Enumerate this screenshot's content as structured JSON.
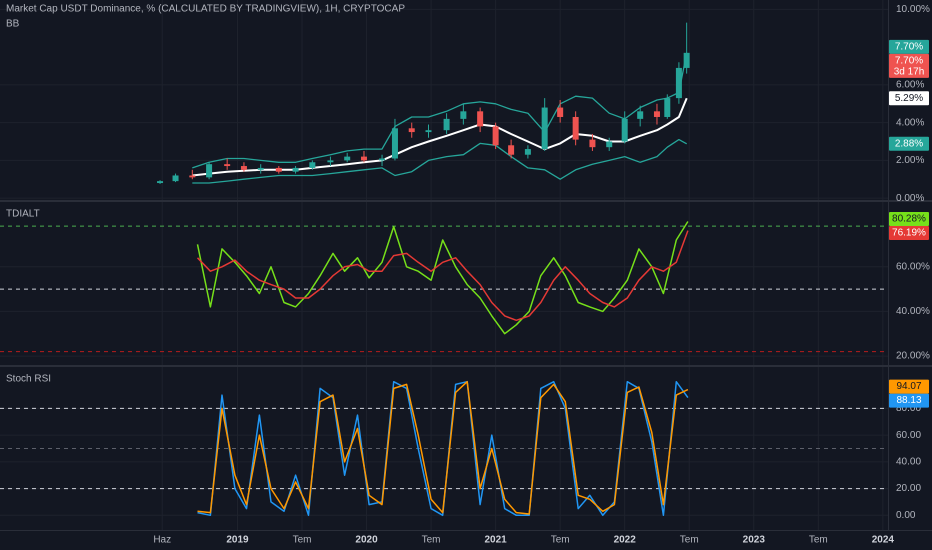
{
  "chart_data": [
    {
      "type": "candlestick",
      "title": "Market Cap USDT Dominance, % (CALCULATED BY TRADINGVIEW), 1H, CRYPTOCAP",
      "indicator": "BB",
      "x": [
        2018.4,
        2018.52,
        2018.65,
        2018.78,
        2018.92,
        2019.05,
        2019.18,
        2019.32,
        2019.45,
        2019.58,
        2019.72,
        2019.85,
        2019.98,
        2020.12,
        2020.22,
        2020.35,
        2020.48,
        2020.62,
        2020.75,
        2020.88,
        2021.0,
        2021.12,
        2021.25,
        2021.38,
        2021.5,
        2021.62,
        2021.75,
        2021.88,
        2022.0,
        2022.12,
        2022.25,
        2022.33,
        2022.42,
        2022.48
      ],
      "open": [
        0.8,
        0.9,
        1.2,
        1.1,
        1.8,
        1.7,
        1.5,
        1.6,
        1.4,
        1.6,
        1.9,
        2.0,
        2.2,
        2.0,
        2.1,
        3.7,
        3.5,
        3.6,
        4.2,
        4.6,
        3.8,
        2.8,
        2.3,
        2.6,
        4.8,
        4.3,
        3.1,
        2.7,
        3.0,
        4.2,
        4.6,
        4.3,
        5.3,
        6.9
      ],
      "high": [
        0.95,
        1.3,
        1.5,
        1.9,
        2.1,
        1.9,
        1.8,
        1.7,
        1.7,
        2.0,
        2.2,
        2.4,
        2.5,
        2.3,
        4.2,
        4.0,
        3.9,
        4.5,
        5.0,
        4.8,
        4.0,
        3.1,
        2.8,
        5.3,
        5.2,
        4.6,
        3.4,
        3.2,
        4.6,
        4.9,
        5.0,
        5.5,
        7.2,
        9.3
      ],
      "low": [
        0.75,
        0.85,
        1.0,
        1.0,
        1.5,
        1.4,
        1.3,
        1.3,
        1.3,
        1.5,
        1.7,
        1.9,
        1.9,
        1.7,
        2.0,
        3.2,
        3.2,
        3.4,
        3.9,
        3.5,
        2.6,
        2.1,
        2.1,
        2.5,
        4.0,
        2.8,
        2.5,
        2.5,
        2.9,
        3.8,
        3.9,
        4.2,
        5.0,
        6.6
      ],
      "close": [
        0.9,
        1.2,
        1.1,
        1.8,
        1.7,
        1.5,
        1.6,
        1.4,
        1.6,
        1.9,
        2.0,
        2.2,
        2.0,
        2.1,
        3.7,
        3.5,
        3.6,
        4.2,
        4.6,
        3.8,
        2.8,
        2.3,
        2.6,
        4.8,
        4.3,
        3.1,
        2.7,
        3.0,
        4.2,
        4.6,
        4.3,
        5.3,
        6.9,
        7.7
      ],
      "up_color": "#26a69a",
      "down_color": "#ef5350",
      "close_label": "7.70%",
      "countdown": "3d 17h",
      "overlays": [
        {
          "color": "#26a69a",
          "values": [
            null,
            null,
            1.6,
            1.9,
            2.1,
            2.1,
            2.0,
            1.9,
            1.9,
            2.1,
            2.3,
            2.5,
            2.6,
            2.6,
            3.8,
            4.3,
            4.3,
            4.6,
            5.0,
            5.1,
            5.0,
            4.7,
            4.5,
            3.5,
            5.0,
            5.4,
            5.3,
            4.5,
            4.2,
            4.8,
            5.2,
            5.3,
            5.6,
            7.7
          ],
          "last_label": "7.70%"
        },
        {
          "color": "#ffffff",
          "values": [
            null,
            null,
            1.2,
            1.3,
            1.4,
            1.45,
            1.5,
            1.5,
            1.5,
            1.6,
            1.7,
            1.8,
            1.9,
            2.0,
            2.3,
            2.7,
            3.0,
            3.3,
            3.6,
            3.9,
            3.8,
            3.4,
            3.0,
            2.6,
            2.9,
            3.4,
            3.3,
            3.0,
            3.0,
            3.3,
            3.6,
            3.9,
            4.3,
            5.29
          ],
          "last_label": "5.29%"
        },
        {
          "color": "#26a69a",
          "values": [
            null,
            null,
            0.8,
            0.8,
            0.9,
            1.0,
            1.1,
            1.2,
            1.2,
            1.2,
            1.3,
            1.4,
            1.5,
            1.6,
            1.2,
            1.4,
            2.0,
            2.2,
            2.3,
            2.9,
            2.8,
            2.2,
            1.6,
            1.5,
            1.0,
            1.5,
            1.8,
            2.0,
            2.2,
            1.9,
            2.2,
            2.7,
            3.1,
            2.88
          ],
          "last_label": "2.88%"
        }
      ],
      "xlim": [
        2017.16,
        2024.04
      ],
      "ylim": [
        -0.1,
        10.5
      ],
      "yticks": [
        {
          "value": 0,
          "label": "0.00%"
        },
        {
          "value": 2,
          "label": "2.00%"
        },
        {
          "value": 4,
          "label": "4.00%"
        },
        {
          "value": 6,
          "label": "6.00%"
        },
        {
          "value": 10,
          "label": "10.00%"
        }
      ]
    },
    {
      "type": "line",
      "title": "TDIALT",
      "x": [
        2018.69,
        2018.79,
        2018.88,
        2018.98,
        2019.07,
        2019.17,
        2019.26,
        2019.36,
        2019.45,
        2019.55,
        2019.64,
        2019.74,
        2019.83,
        2019.93,
        2020.02,
        2020.12,
        2020.21,
        2020.31,
        2020.4,
        2020.5,
        2020.59,
        2020.69,
        2020.78,
        2020.88,
        2020.97,
        2021.07,
        2021.16,
        2021.26,
        2021.35,
        2021.45,
        2021.54,
        2021.64,
        2021.73,
        2021.83,
        2021.92,
        2022.02,
        2022.11,
        2022.21,
        2022.3,
        2022.4,
        2022.49
      ],
      "series": [
        {
          "color": "#76e01a",
          "values": [
            70,
            42,
            68,
            62,
            56,
            48,
            60,
            44,
            42,
            48,
            56,
            66,
            58,
            64,
            55,
            62,
            78,
            60,
            58,
            54,
            72,
            60,
            52,
            46,
            38,
            30,
            34,
            40,
            56,
            64,
            56,
            44,
            42,
            40,
            46,
            54,
            68,
            60,
            48,
            72,
            80.28
          ],
          "last_label": "80.28%"
        },
        {
          "color": "#e53935",
          "values": [
            64,
            58,
            60,
            63,
            58,
            54,
            52,
            50,
            46,
            46,
            50,
            56,
            60,
            61,
            58,
            58,
            65,
            66,
            62,
            58,
            62,
            64,
            58,
            52,
            44,
            38,
            36,
            38,
            44,
            54,
            60,
            54,
            48,
            44,
            42,
            46,
            54,
            60,
            58,
            62,
            76.19
          ],
          "last_label": "76.19%"
        }
      ],
      "hlines": [
        {
          "value": 78.2,
          "color": "#4caf50"
        },
        {
          "value": 50,
          "color": "#d1d4dc"
        },
        {
          "value": 22,
          "color": "#b71c1c"
        }
      ],
      "xlim": [
        2017.16,
        2024.04
      ],
      "ylim": [
        16,
        89
      ],
      "yticks": [
        {
          "value": 20,
          "label": "20.00%"
        },
        {
          "value": 40,
          "label": "40.00%"
        },
        {
          "value": 60,
          "label": "60.00%"
        }
      ]
    },
    {
      "type": "line",
      "title": "Stoch RSI",
      "x": [
        2018.69,
        2018.79,
        2018.88,
        2018.98,
        2019.07,
        2019.17,
        2019.26,
        2019.36,
        2019.45,
        2019.55,
        2019.64,
        2019.74,
        2019.83,
        2019.93,
        2020.02,
        2020.12,
        2020.21,
        2020.31,
        2020.4,
        2020.5,
        2020.59,
        2020.69,
        2020.78,
        2020.88,
        2020.97,
        2021.07,
        2021.16,
        2021.26,
        2021.35,
        2021.45,
        2021.54,
        2021.64,
        2021.73,
        2021.83,
        2021.92,
        2022.02,
        2022.11,
        2022.21,
        2022.3,
        2022.4,
        2022.49
      ],
      "series": [
        {
          "color": "#2196f3",
          "values": [
            2,
            0,
            90,
            20,
            5,
            75,
            10,
            3,
            30,
            0,
            95,
            88,
            30,
            75,
            8,
            10,
            100,
            95,
            50,
            5,
            0,
            98,
            100,
            8,
            60,
            5,
            0,
            0,
            95,
            100,
            80,
            5,
            15,
            0,
            10,
            100,
            95,
            55,
            0,
            100,
            88.13
          ],
          "last_label": "88.13"
        },
        {
          "color": "#ff9800",
          "values": [
            3,
            2,
            80,
            30,
            8,
            60,
            20,
            5,
            25,
            5,
            85,
            90,
            40,
            65,
            15,
            8,
            95,
            98,
            60,
            12,
            2,
            92,
            100,
            20,
            50,
            12,
            2,
            1,
            88,
            98,
            85,
            15,
            12,
            3,
            8,
            92,
            96,
            62,
            8,
            90,
            94.07
          ],
          "last_label": "94.07"
        }
      ],
      "hlines": [
        {
          "value": 80,
          "color": "#d1d4dc"
        },
        {
          "value": 50,
          "color": "#5d606b"
        },
        {
          "value": 20,
          "color": "#d1d4dc"
        }
      ],
      "xlim": [
        2017.16,
        2024.04
      ],
      "ylim": [
        -11,
        111
      ],
      "yticks": [
        {
          "value": 0,
          "label": "0.00"
        },
        {
          "value": 20,
          "label": "20.00"
        },
        {
          "value": 40,
          "label": "40.00"
        },
        {
          "value": 60,
          "label": "60.00"
        },
        {
          "value": 80,
          "label": "80.00"
        }
      ],
      "xticks": [
        {
          "value": 2018.417,
          "label": "Haz"
        },
        {
          "value": 2019,
          "label": "2019"
        },
        {
          "value": 2019.5,
          "label": "Tem"
        },
        {
          "value": 2020,
          "label": "2020"
        },
        {
          "value": 2020.5,
          "label": "Tem"
        },
        {
          "value": 2021,
          "label": "2021"
        },
        {
          "value": 2021.5,
          "label": "Tem"
        },
        {
          "value": 2022,
          "label": "2022"
        },
        {
          "value": 2022.5,
          "label": "Tem"
        },
        {
          "value": 2023,
          "label": "2023"
        },
        {
          "value": 2023.5,
          "label": "Tem"
        },
        {
          "value": 2024,
          "label": "2024"
        }
      ]
    }
  ]
}
